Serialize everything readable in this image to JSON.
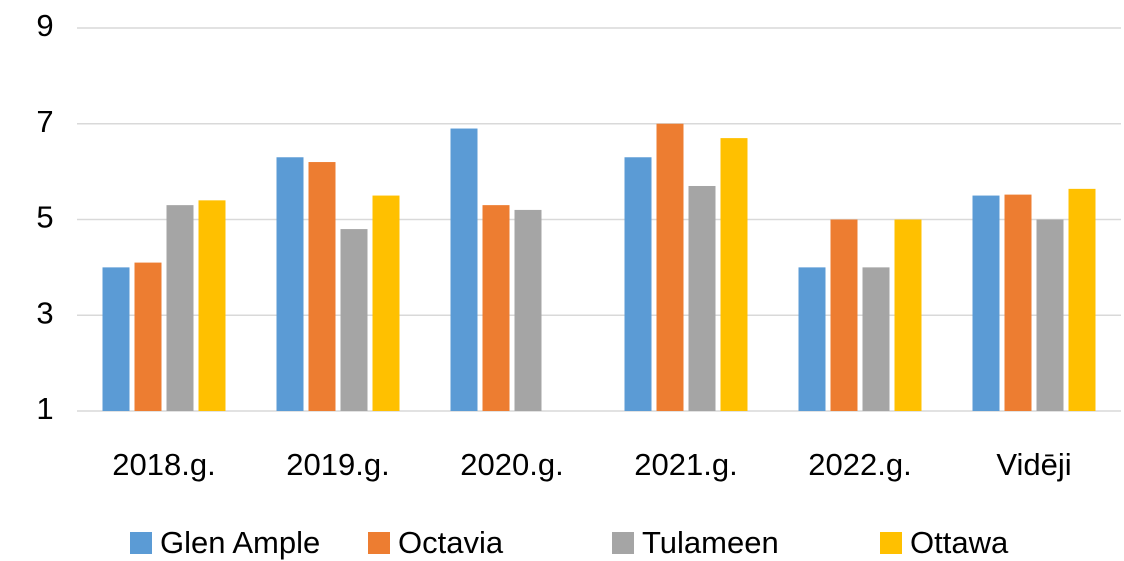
{
  "chart_data": {
    "type": "bar",
    "categories": [
      "2018.g.",
      "2019.g.",
      "2020.g.",
      "2021.g.",
      "2022.g.",
      "Vidēji"
    ],
    "series": [
      {
        "name": "Glen Ample",
        "color": "#5b9bd5",
        "values": [
          4.0,
          6.3,
          6.9,
          6.3,
          4.0,
          5.5
        ]
      },
      {
        "name": "Octavia",
        "color": "#ed7d31",
        "values": [
          4.1,
          6.2,
          5.3,
          7.0,
          5.0,
          5.52
        ]
      },
      {
        "name": "Tulameen",
        "color": "#a5a5a5",
        "values": [
          5.3,
          4.8,
          5.2,
          5.7,
          4.0,
          5.0
        ]
      },
      {
        "name": "Ottawa",
        "color": "#ffc000",
        "values": [
          5.4,
          5.5,
          null,
          6.7,
          5.0,
          5.64
        ]
      }
    ],
    "ylim": [
      1,
      9
    ],
    "yticks": [
      1,
      3,
      5,
      7,
      9
    ],
    "grid": true,
    "legend": "bottom"
  }
}
